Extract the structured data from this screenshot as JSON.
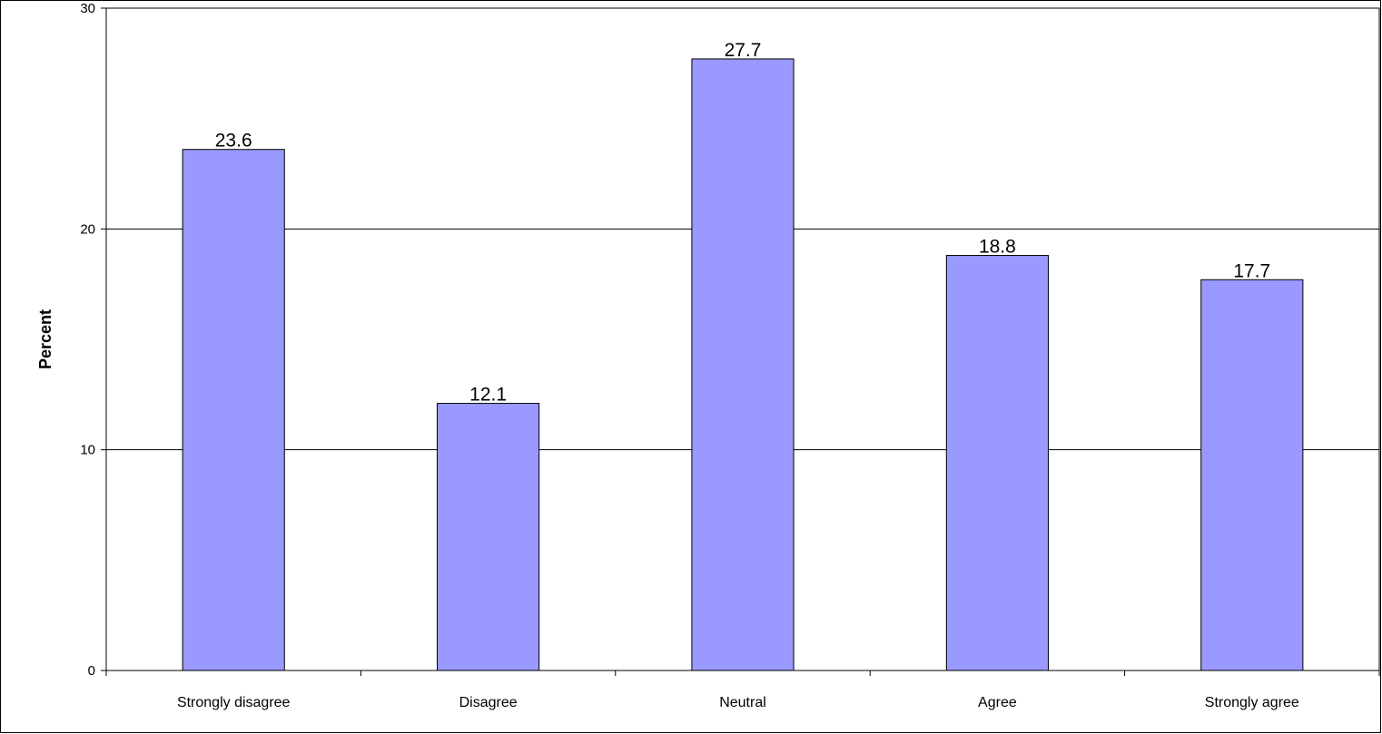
{
  "chart_data": {
    "type": "bar",
    "categories": [
      "Strongly disagree",
      "Disagree",
      "Neutral",
      "Agree",
      "Strongly agree"
    ],
    "values": [
      23.6,
      12.1,
      27.7,
      18.8,
      17.7
    ],
    "data_labels": [
      "23.6",
      "12.1",
      "27.7",
      "18.8",
      "17.7"
    ],
    "xlabel": "",
    "ylabel": "Percent",
    "ylim": [
      0,
      30
    ],
    "yticks": [
      0,
      10,
      20,
      30
    ],
    "ytick_labels": [
      "0",
      "10",
      "20",
      "30"
    ],
    "grid": true,
    "legend": "none",
    "bar_color": "#9999ff",
    "bar_border_color": "#000000"
  }
}
